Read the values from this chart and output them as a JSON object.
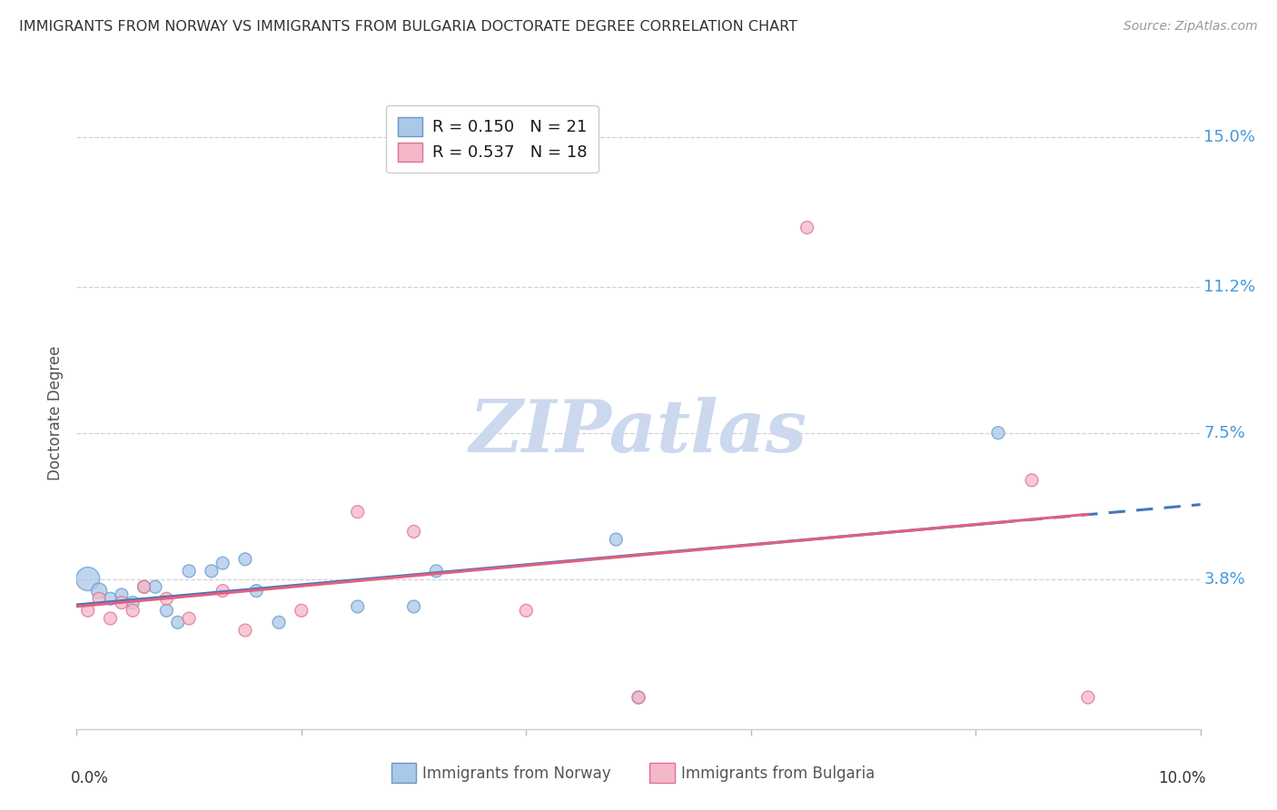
{
  "title": "IMMIGRANTS FROM NORWAY VS IMMIGRANTS FROM BULGARIA DOCTORATE DEGREE CORRELATION CHART",
  "source": "Source: ZipAtlas.com",
  "ylabel": "Doctorate Degree",
  "xlim": [
    0.0,
    0.1
  ],
  "ylim": [
    0.0,
    0.16
  ],
  "ytick_vals": [
    0.038,
    0.075,
    0.112,
    0.15
  ],
  "ytick_labels": [
    "3.8%",
    "7.5%",
    "11.2%",
    "15.0%"
  ],
  "grid_color": "#cccccc",
  "bg_color": "#ffffff",
  "norway_color": "#aac8e8",
  "norway_edge_color": "#6699cc",
  "bulgaria_color": "#f5b8c8",
  "bulgaria_edge_color": "#e07090",
  "norway_line_color": "#4477bb",
  "bulgaria_line_color": "#e06080",
  "norway_R": 0.15,
  "norway_N": 21,
  "bulgaria_R": 0.537,
  "bulgaria_N": 18,
  "right_label_color": "#4499dd",
  "norway_x": [
    0.001,
    0.002,
    0.003,
    0.004,
    0.005,
    0.006,
    0.007,
    0.008,
    0.009,
    0.01,
    0.012,
    0.013,
    0.015,
    0.016,
    0.018,
    0.025,
    0.03,
    0.032,
    0.048,
    0.05,
    0.082
  ],
  "norway_y": [
    0.038,
    0.035,
    0.033,
    0.034,
    0.032,
    0.036,
    0.036,
    0.03,
    0.027,
    0.04,
    0.04,
    0.042,
    0.043,
    0.035,
    0.027,
    0.031,
    0.031,
    0.04,
    0.048,
    0.008,
    0.075
  ],
  "norway_size": [
    350,
    150,
    100,
    100,
    100,
    100,
    100,
    100,
    100,
    100,
    100,
    100,
    100,
    100,
    100,
    100,
    100,
    100,
    100,
    100,
    100
  ],
  "bulgaria_x": [
    0.001,
    0.002,
    0.003,
    0.004,
    0.005,
    0.006,
    0.008,
    0.01,
    0.013,
    0.015,
    0.02,
    0.025,
    0.03,
    0.04,
    0.05,
    0.065,
    0.085,
    0.09
  ],
  "bulgaria_y": [
    0.03,
    0.033,
    0.028,
    0.032,
    0.03,
    0.036,
    0.033,
    0.028,
    0.035,
    0.025,
    0.03,
    0.055,
    0.05,
    0.03,
    0.008,
    0.127,
    0.063,
    0.008
  ],
  "bulgaria_size": [
    100,
    100,
    100,
    100,
    100,
    100,
    100,
    100,
    100,
    100,
    100,
    100,
    100,
    100,
    100,
    100,
    100,
    100
  ],
  "watermark": "ZIPatlas",
  "watermark_color": "#ccd8ee"
}
